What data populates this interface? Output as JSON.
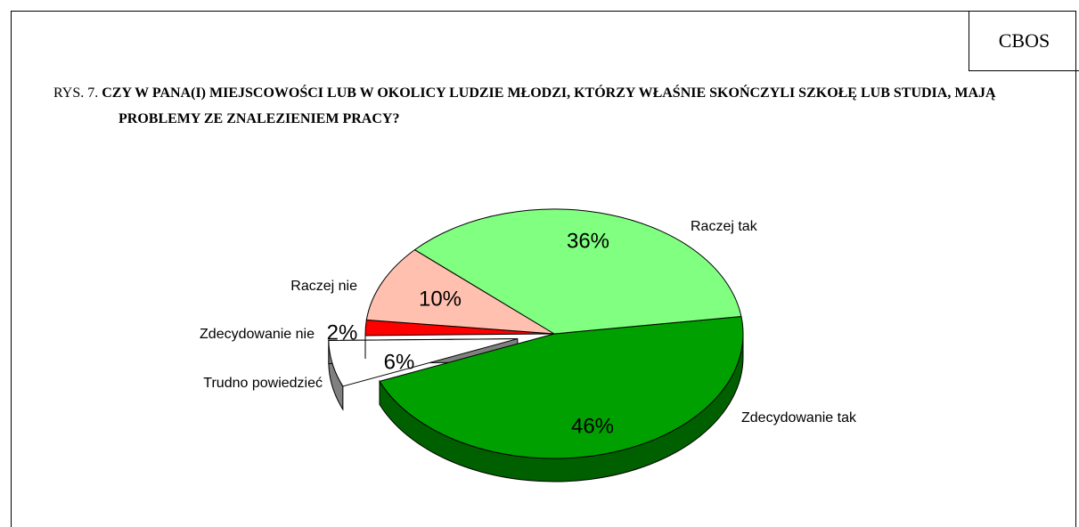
{
  "chart_data": {
    "type": "pie",
    "source": "CBOS",
    "figure_label": "RYS. 7.",
    "title": "CZY W PANA(I) MIEJSCOWOŚCI LUB W OKOLICY LUDZIE MŁODZI, KTÓRZY WŁAŚNIE SKOŃCZYLI SZKOŁĘ LUB STUDIA, MAJĄ PROBLEMY ZE ZNALEZIENIEM PRACY?",
    "categories": [
      "Zdecydowanie tak",
      "Trudno powiedzieć",
      "Zdecydowanie nie",
      "Raczej nie",
      "Raczej tak"
    ],
    "values": [
      46,
      6,
      2,
      10,
      36
    ],
    "value_labels": [
      "46%",
      "6%",
      "2%",
      "10%",
      "36%"
    ],
    "colors": [
      "#00a000",
      "#ffffff",
      "#ff0000",
      "#ffc0b0",
      "#80ff80"
    ]
  }
}
